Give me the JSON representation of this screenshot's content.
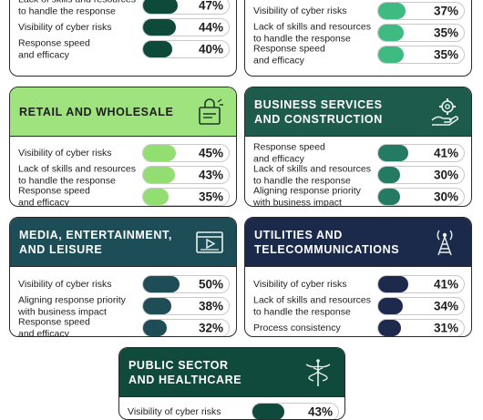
{
  "colors": {
    "financial": "#0d4a3a",
    "it": "#3fbb82",
    "retail_header": "#9ee37d",
    "retail_fill": "#92de73",
    "business_header": "#1d5c4c",
    "business_fill": "#247a62",
    "media_header": "#1d4d57",
    "media_fill": "#1e4c57",
    "utilities_header": "#1b2a4a",
    "utilities_fill": "#1d2a4d",
    "public_header": "#0f4a3d",
    "public_fill": "#0f4a3d"
  },
  "chart_data": [
    {
      "type": "bar",
      "title": "",
      "categories": [
        "Lack of skills and resources to handle the response",
        "Visibility of cyber risks",
        "Response speed and efficacy"
      ],
      "values": [
        47,
        44,
        40
      ],
      "unit": "%",
      "color": "financial",
      "labels": [
        "47%",
        "44%",
        "40%"
      ],
      "category_lines": [
        [
          "Lack of skills and resources",
          "to handle the response"
        ],
        [
          "Visibility of cyber risks"
        ],
        [
          "Response speed",
          "and efficacy"
        ]
      ]
    },
    {
      "type": "bar",
      "title": "",
      "categories": [
        "Visibility of cyber risks",
        "Lack of skills and resources to handle the response",
        "Response speed and efficacy"
      ],
      "values": [
        37,
        35,
        35
      ],
      "unit": "%",
      "color": "it",
      "labels": [
        "37%",
        "35%",
        "35%"
      ],
      "category_lines": [
        [
          "Visibility of cyber risks"
        ],
        [
          "Lack of skills and resources",
          "to handle the response"
        ],
        [
          "Response speed",
          "and efficacy"
        ]
      ]
    },
    {
      "type": "bar",
      "title": "RETAIL AND WHOLESALE",
      "title_lines": [
        "RETAIL AND WHOLESALE"
      ],
      "icon": "shopping-bag-icon",
      "categories": [
        "Visibility of cyber risks",
        "Lack of skills and resources to handle the response",
        "Response speed and efficacy"
      ],
      "values": [
        45,
        43,
        35
      ],
      "unit": "%",
      "color": "retail_fill",
      "header_color": "retail_header",
      "labels": [
        "45%",
        "43%",
        "35%"
      ],
      "category_lines": [
        [
          "Visibility of cyber risks"
        ],
        [
          "Lack of skills and resources",
          "to handle the response"
        ],
        [
          "Response speed",
          "and efficacy"
        ]
      ]
    },
    {
      "type": "bar",
      "title": "BUSINESS SERVICES AND CONSTRUCTION",
      "title_lines": [
        "BUSINESS SERVICES",
        "AND CONSTRUCTION"
      ],
      "icon": "gear-hand-icon",
      "categories": [
        "Response speed and efficacy",
        "Lack of skills and resources to handle the response",
        "Aligning response priority with business impact"
      ],
      "values": [
        41,
        30,
        30
      ],
      "unit": "%",
      "color": "business_fill",
      "header_color": "business_header",
      "labels": [
        "41%",
        "30%",
        "30%"
      ],
      "category_lines": [
        [
          "Response speed",
          "and efficacy"
        ],
        [
          "Lack of skills and resources",
          "to handle the response"
        ],
        [
          "Aligning response priority",
          "with business impact"
        ]
      ]
    },
    {
      "type": "bar",
      "title": "MEDIA, ENTERTAINMENT, AND LEISURE",
      "title_lines": [
        "MEDIA, ENTERTAINMENT,",
        "AND LEISURE"
      ],
      "icon": "video-player-icon",
      "categories": [
        "Visibility of cyber risks",
        "Aligning response priority with business impact",
        "Response speed and efficacy"
      ],
      "values": [
        50,
        38,
        32
      ],
      "unit": "%",
      "color": "media_fill",
      "header_color": "media_header",
      "labels": [
        "50%",
        "38%",
        "32%"
      ],
      "category_lines": [
        [
          "Visibility of cyber risks"
        ],
        [
          "Aligning response priority",
          "with business impact"
        ],
        [
          "Response speed",
          "and efficacy"
        ]
      ]
    },
    {
      "type": "bar",
      "title": "UTILITIES AND TELECOMMUNICATIONS",
      "title_lines": [
        "UTILITIES AND",
        "TELECOMMUNICATIONS"
      ],
      "icon": "antenna-tower-icon",
      "categories": [
        "Visibility of cyber risks",
        "Lack of skills and resources to handle the response",
        "Process consistency"
      ],
      "values": [
        41,
        34,
        31
      ],
      "unit": "%",
      "color": "utilities_fill",
      "header_color": "utilities_header",
      "labels": [
        "41%",
        "34%",
        "31%"
      ],
      "category_lines": [
        [
          "Visibility of cyber risks"
        ],
        [
          "Lack of skills and resources",
          "to handle the response"
        ],
        [
          "Process consistency"
        ]
      ]
    },
    {
      "type": "bar",
      "title": "PUBLIC SECTOR AND HEALTHCARE",
      "title_lines": [
        "PUBLIC SECTOR",
        "AND HEALTHCARE"
      ],
      "icon": "caduceus-icon",
      "categories": [
        "Visibility of cyber risks"
      ],
      "values": [
        43
      ],
      "unit": "%",
      "color": "public_fill",
      "header_color": "public_header",
      "labels": [
        "43%"
      ],
      "category_lines": [
        [
          "Visibility of cyber risks"
        ]
      ]
    }
  ]
}
